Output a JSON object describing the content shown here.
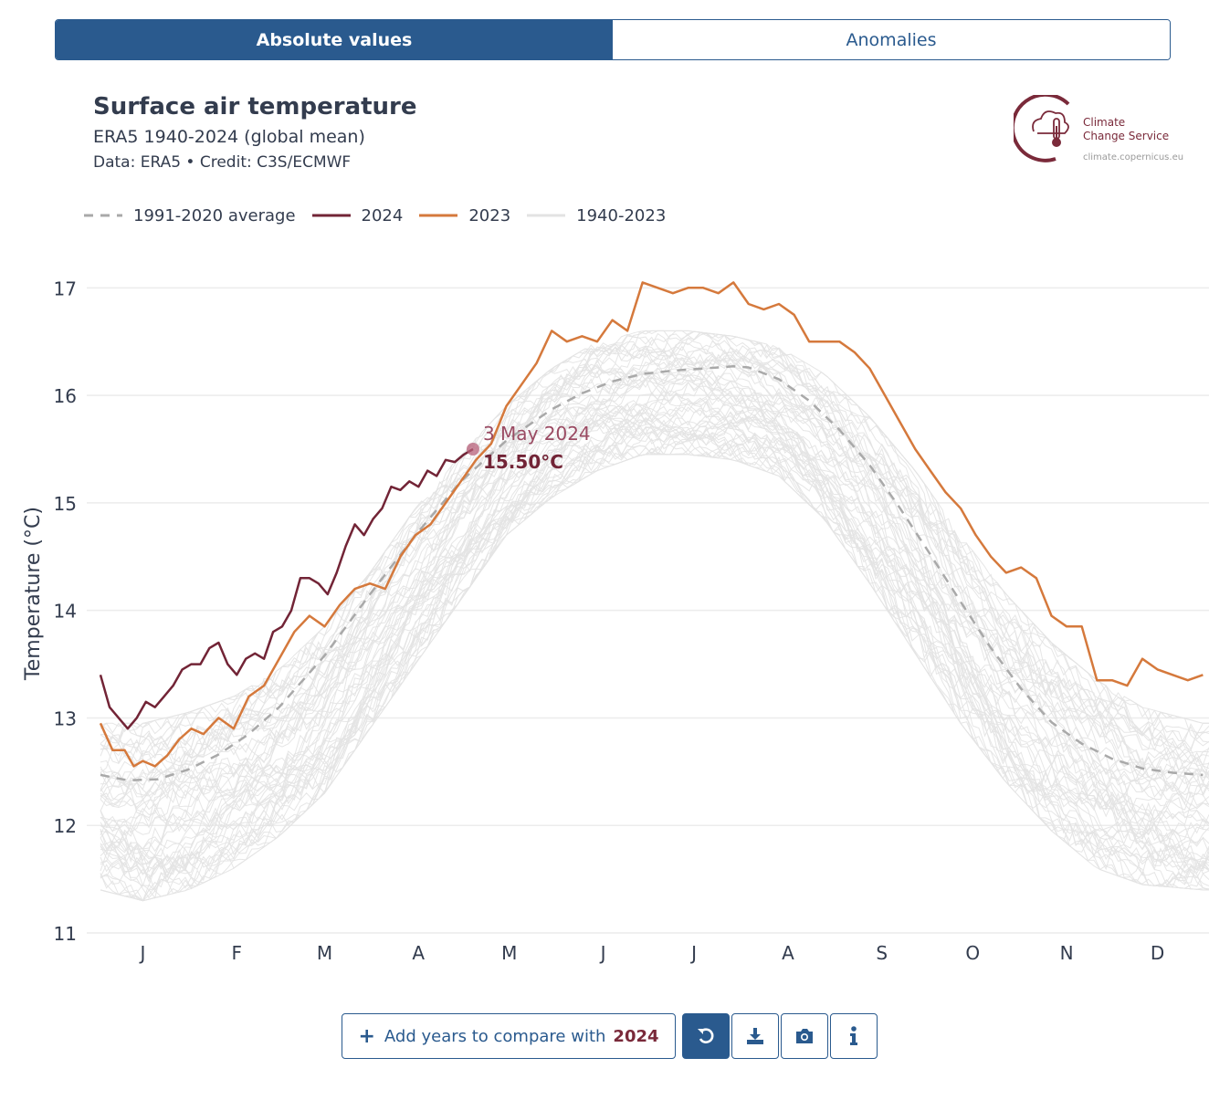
{
  "toggle": {
    "absolute_label": "Absolute values",
    "anomalies_label": "Anomalies"
  },
  "header": {
    "title": "Surface air temperature",
    "subtitle": "ERA5 1940-2024 (global mean)",
    "credit": "Data: ERA5 • Credit: C3S/ECMWF"
  },
  "logo": {
    "line1": "Climate",
    "line2": "Change Service",
    "url": "climate.copernicus.eu"
  },
  "legend": [
    {
      "label": "1991-2020 average",
      "color": "#a9a9a9",
      "dash": true
    },
    {
      "label": "2024",
      "color": "#722436",
      "dash": false
    },
    {
      "label": "2023",
      "color": "#d5793c",
      "dash": false
    },
    {
      "label": "1940-2023",
      "color": "#e3e3e3",
      "dash": false
    }
  ],
  "tooltip": {
    "date": "3 May 2024",
    "value": "15.50°C"
  },
  "toolbar": {
    "add_label": "Add years to compare with",
    "add_year": "2024"
  },
  "chart_data": {
    "type": "line",
    "ylabel": "Temperature (°C)",
    "ylim": [
      11,
      17.3
    ],
    "yticks": [
      11,
      12,
      13,
      14,
      15,
      16,
      17
    ],
    "xlim": [
      1,
      367
    ],
    "month_labels": [
      "J",
      "F",
      "M",
      "A",
      "M",
      "J",
      "J",
      "A",
      "S",
      "O",
      "N",
      "D"
    ],
    "month_label_days": [
      15,
      46,
      75,
      106,
      136,
      167,
      197,
      228,
      259,
      289,
      320,
      350
    ],
    "grid": true,
    "legend_position": "top-left",
    "series": [
      {
        "name": "1991-2020 average",
        "color": "#a9a9a9",
        "style": "dashed",
        "x": [
          1,
          10,
          20,
          30,
          40,
          50,
          60,
          75,
          90,
          105,
          120,
          135,
          150,
          160,
          170,
          180,
          190,
          200,
          210,
          215,
          225,
          235,
          245,
          255,
          265,
          275,
          285,
          295,
          305,
          315,
          325,
          335,
          345,
          355,
          365
        ],
        "y": [
          12.47,
          12.42,
          12.43,
          12.52,
          12.66,
          12.85,
          13.1,
          13.58,
          14.15,
          14.7,
          15.2,
          15.58,
          15.87,
          16.02,
          16.13,
          16.2,
          16.23,
          16.25,
          16.27,
          16.26,
          16.15,
          15.95,
          15.68,
          15.35,
          14.95,
          14.52,
          14.08,
          13.65,
          13.27,
          12.96,
          12.76,
          12.62,
          12.53,
          12.49,
          12.47
        ]
      },
      {
        "name": "2024",
        "color": "#722436",
        "style": "solid",
        "x": [
          1,
          4,
          7,
          10,
          13,
          16,
          19,
          22,
          25,
          28,
          31,
          34,
          37,
          40,
          43,
          46,
          49,
          52,
          55,
          58,
          61,
          64,
          67,
          70,
          73,
          76,
          79,
          82,
          85,
          88,
          91,
          94,
          97,
          100,
          103,
          106,
          109,
          112,
          115,
          118,
          121,
          124
        ],
        "y": [
          13.4,
          13.1,
          13.0,
          12.9,
          13.0,
          13.15,
          13.1,
          13.2,
          13.3,
          13.45,
          13.5,
          13.5,
          13.65,
          13.7,
          13.5,
          13.4,
          13.55,
          13.6,
          13.55,
          13.8,
          13.85,
          14.0,
          14.3,
          14.3,
          14.25,
          14.15,
          14.35,
          14.6,
          14.8,
          14.7,
          14.85,
          14.95,
          15.15,
          15.12,
          15.2,
          15.15,
          15.3,
          15.25,
          15.4,
          15.38,
          15.45,
          15.5
        ]
      },
      {
        "name": "2023",
        "color": "#d5793c",
        "style": "solid",
        "x": [
          1,
          5,
          9,
          12,
          15,
          19,
          23,
          27,
          31,
          35,
          40,
          45,
          50,
          55,
          60,
          65,
          70,
          75,
          80,
          85,
          90,
          95,
          100,
          105,
          110,
          115,
          120,
          125,
          130,
          135,
          140,
          145,
          150,
          155,
          160,
          165,
          170,
          175,
          180,
          185,
          190,
          195,
          200,
          205,
          210,
          215,
          220,
          225,
          230,
          235,
          240,
          245,
          250,
          255,
          260,
          265,
          270,
          275,
          280,
          285,
          290,
          295,
          300,
          305,
          310,
          315,
          320,
          325,
          330,
          335,
          340,
          345,
          350,
          355,
          360,
          365
        ],
        "y": [
          12.95,
          12.7,
          12.7,
          12.55,
          12.6,
          12.55,
          12.65,
          12.8,
          12.9,
          12.85,
          13.0,
          12.9,
          13.2,
          13.3,
          13.55,
          13.8,
          13.95,
          13.85,
          14.05,
          14.2,
          14.25,
          14.2,
          14.5,
          14.7,
          14.8,
          15.0,
          15.2,
          15.4,
          15.55,
          15.9,
          16.1,
          16.3,
          16.6,
          16.5,
          16.55,
          16.5,
          16.7,
          16.6,
          17.05,
          17.0,
          16.95,
          17.0,
          17.0,
          16.95,
          17.05,
          16.85,
          16.8,
          16.85,
          16.75,
          16.5,
          16.5,
          16.5,
          16.4,
          16.25,
          16.0,
          15.75,
          15.5,
          15.3,
          15.1,
          14.95,
          14.7,
          14.5,
          14.35,
          14.4,
          14.3,
          13.95,
          13.85,
          13.85,
          13.35,
          13.35,
          13.3,
          13.55,
          13.45,
          13.4,
          13.35,
          13.4
        ]
      }
    ],
    "envelope_1940_2023": {
      "name": "1940-2023",
      "color": "#e3e3e3",
      "x": [
        1,
        15,
        30,
        45,
        60,
        75,
        90,
        105,
        120,
        135,
        150,
        165,
        180,
        195,
        210,
        225,
        240,
        255,
        270,
        285,
        300,
        315,
        330,
        345,
        365
      ],
      "low": [
        11.4,
        11.3,
        11.4,
        11.6,
        11.9,
        12.3,
        12.9,
        13.5,
        14.1,
        14.7,
        15.05,
        15.3,
        15.45,
        15.45,
        15.4,
        15.25,
        14.85,
        14.25,
        13.6,
        12.95,
        12.4,
        11.95,
        11.6,
        11.45,
        11.4
      ],
      "high": [
        12.95,
        12.95,
        13.05,
        13.2,
        13.45,
        13.85,
        14.35,
        14.95,
        15.45,
        15.9,
        16.25,
        16.5,
        16.6,
        16.6,
        16.55,
        16.45,
        16.2,
        15.8,
        15.3,
        14.7,
        14.15,
        13.7,
        13.35,
        13.1,
        12.95
      ]
    }
  }
}
